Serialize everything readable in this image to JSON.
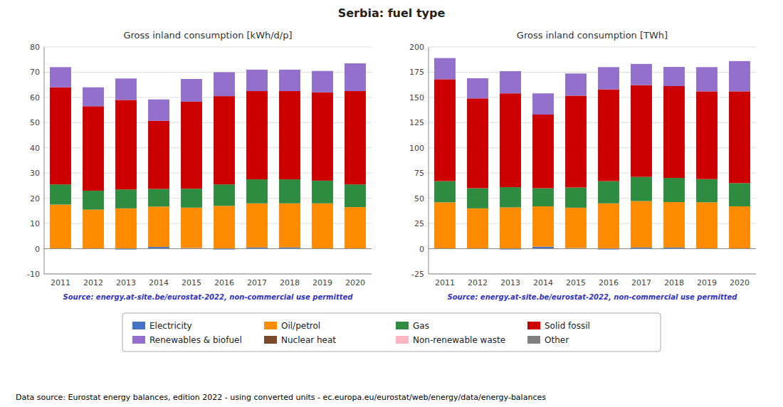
{
  "chart_data": [
    {
      "type": "bar",
      "stacked": true,
      "grid": true,
      "legend": "bottom",
      "title": "Serbia: fuel type",
      "subtitle": "Gross inland consumption [kWh/d/p]",
      "annotations": [
        "Source: energy.at-site.be/eurostat-2022, non-commercial use permitted",
        "Data source: Eurostat energy balances, edition 2022 - using converted units - ec.europa.eu/eurostat/web/energy/data/energy-balances"
      ],
      "categories": [
        "2011",
        "2012",
        "2013",
        "2014",
        "2015",
        "2016",
        "2017",
        "2018",
        "2019",
        "2020"
      ],
      "ylim": [
        -10,
        80
      ],
      "yticks": [
        -10,
        0,
        10,
        20,
        30,
        40,
        50,
        60,
        70,
        80
      ],
      "series": [
        {
          "name": "Electricity",
          "color": "#4472c4",
          "values": [
            0.0,
            0.0,
            -0.3,
            0.7,
            0.3,
            -0.3,
            0.5,
            0.5,
            0.0,
            0.0
          ]
        },
        {
          "name": "Oil/petrol",
          "color": "#ff8c00",
          "values": [
            17.5,
            15.5,
            16.0,
            16.0,
            16.0,
            17.0,
            17.5,
            17.5,
            18.0,
            16.5
          ]
        },
        {
          "name": "Gas",
          "color": "#2e8b40",
          "values": [
            8.0,
            7.5,
            7.5,
            7.0,
            7.5,
            8.5,
            9.5,
            9.5,
            9.0,
            9.0
          ]
        },
        {
          "name": "Solid fossil",
          "color": "#cc0000",
          "values": [
            38.5,
            33.5,
            35.5,
            27.0,
            34.5,
            35.0,
            35.0,
            35.0,
            35.0,
            37.0
          ]
        },
        {
          "name": "Renewables & biofuel",
          "color": "#9370cb",
          "values": [
            8.0,
            7.5,
            8.5,
            8.5,
            9.0,
            9.5,
            8.5,
            8.5,
            8.5,
            11.0
          ]
        },
        {
          "name": "Nuclear heat",
          "color": "#7b4a2d",
          "values": [
            0.0,
            0.0,
            0.0,
            0.0,
            0.0,
            0.0,
            0.0,
            0.0,
            0.0,
            0.0
          ]
        },
        {
          "name": "Non-renewable waste",
          "color": "#ffb6c1",
          "values": [
            0.0,
            0.0,
            0.0,
            0.0,
            0.0,
            0.0,
            0.0,
            0.0,
            0.0,
            0.0
          ]
        },
        {
          "name": "Other",
          "color": "#808080",
          "values": [
            0.0,
            0.0,
            0.0,
            0.0,
            0.0,
            0.0,
            0.0,
            0.0,
            0.0,
            0.0
          ]
        }
      ]
    },
    {
      "type": "bar",
      "stacked": true,
      "grid": true,
      "subtitle": "Gross inland consumption [TWh]",
      "annotations": [
        "Source: energy.at-site.be/eurostat-2022, non-commercial use permitted"
      ],
      "categories": [
        "2011",
        "2012",
        "2013",
        "2014",
        "2015",
        "2016",
        "2017",
        "2018",
        "2019",
        "2020"
      ],
      "ylim": [
        -25,
        200
      ],
      "yticks": [
        -25,
        0,
        25,
        50,
        75,
        100,
        125,
        150,
        175,
        200
      ],
      "series": [
        {
          "name": "Electricity",
          "color": "#4472c4",
          "values": [
            0.0,
            0.0,
            -0.7,
            2.0,
            0.7,
            -0.7,
            1.2,
            1.2,
            0.0,
            0.0
          ]
        },
        {
          "name": "Oil/petrol",
          "color": "#ff8c00",
          "values": [
            46.0,
            40.0,
            41.0,
            40.0,
            40.0,
            45.0,
            46.0,
            45.0,
            46.0,
            42.0
          ]
        },
        {
          "name": "Gas",
          "color": "#2e8b40",
          "values": [
            21.0,
            20.0,
            20.0,
            18.0,
            20.0,
            22.0,
            24.0,
            24.0,
            23.0,
            23.0
          ]
        },
        {
          "name": "Solid fossil",
          "color": "#cc0000",
          "values": [
            101.0,
            89.0,
            93.0,
            73.0,
            91.0,
            91.0,
            91.0,
            91.0,
            87.0,
            91.0
          ]
        },
        {
          "name": "Renewables & biofuel",
          "color": "#9370cb",
          "values": [
            21.0,
            20.0,
            22.0,
            21.0,
            22.0,
            22.0,
            21.0,
            19.0,
            24.0,
            30.0
          ]
        },
        {
          "name": "Nuclear heat",
          "color": "#7b4a2d",
          "values": [
            0.0,
            0.0,
            0.0,
            0.0,
            0.0,
            0.0,
            0.0,
            0.0,
            0.0,
            0.0
          ]
        },
        {
          "name": "Non-renewable waste",
          "color": "#ffb6c1",
          "values": [
            0.0,
            0.0,
            0.0,
            0.0,
            0.0,
            0.0,
            0.0,
            0.0,
            0.0,
            0.0
          ]
        },
        {
          "name": "Other",
          "color": "#808080",
          "values": [
            0.0,
            0.0,
            0.0,
            0.0,
            0.0,
            0.0,
            0.0,
            0.0,
            0.0,
            0.0
          ]
        }
      ]
    }
  ]
}
